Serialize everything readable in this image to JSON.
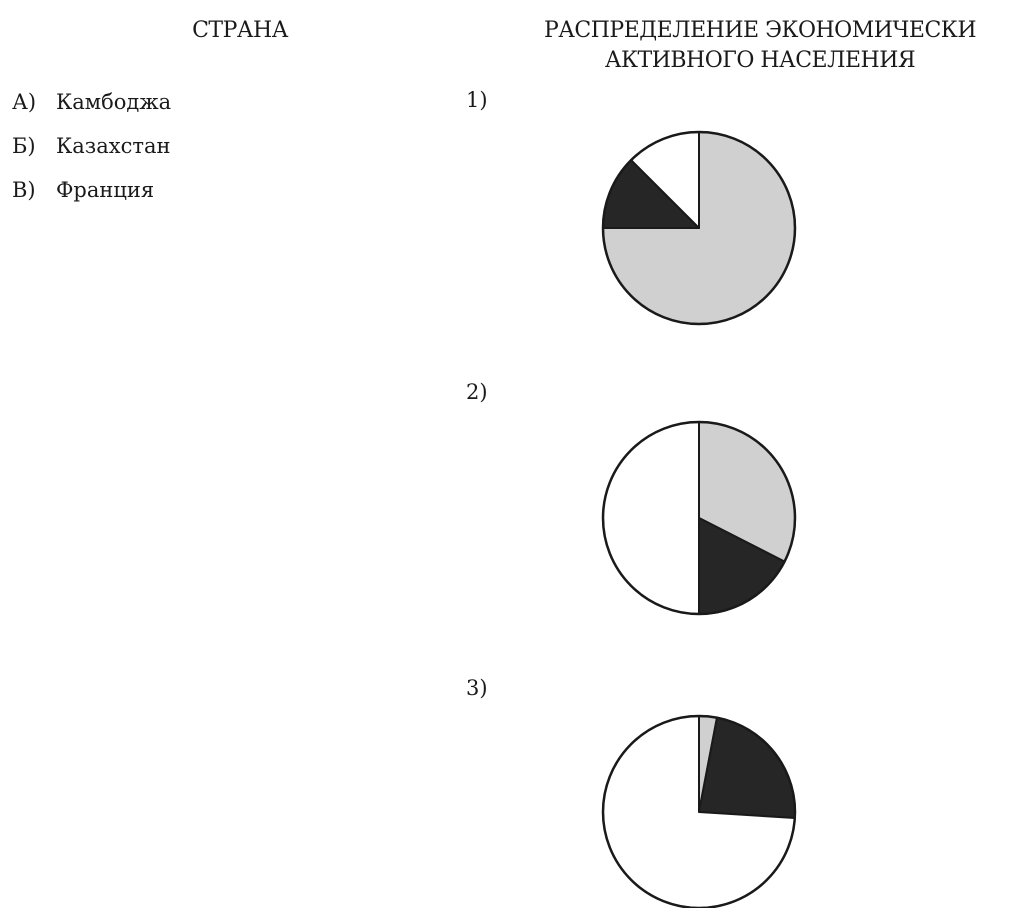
{
  "headers": {
    "country": "СТРАНА",
    "distribution_line1": "РАСПРЕДЕЛЕНИЕ ЭКОНОМИЧЕСКИ",
    "distribution_line2": "АКТИВНОГО НАСЕЛЕНИЯ"
  },
  "countries": [
    {
      "letter": "А)",
      "name": "Камбоджа"
    },
    {
      "letter": "Б)",
      "name": "Казахстан"
    },
    {
      "letter": "В)",
      "name": "Франция"
    }
  ],
  "colors": {
    "light_gray": "#d0d0d0",
    "dark": "#262626",
    "white": "#ffffff",
    "outline": "#1a1a1a"
  },
  "chart_data": [
    {
      "type": "pie",
      "label": "1)",
      "values": [
        75,
        12.5,
        12.5
      ],
      "colors": [
        "#d0d0d0",
        "#262626",
        "#ffffff"
      ]
    },
    {
      "type": "pie",
      "label": "2)",
      "values": [
        32.5,
        17.5,
        50
      ],
      "colors": [
        "#d0d0d0",
        "#262626",
        "#ffffff"
      ]
    },
    {
      "type": "pie",
      "label": "3)",
      "values": [
        3,
        23,
        74
      ],
      "colors": [
        "#d0d0d0",
        "#262626",
        "#ffffff"
      ]
    }
  ]
}
